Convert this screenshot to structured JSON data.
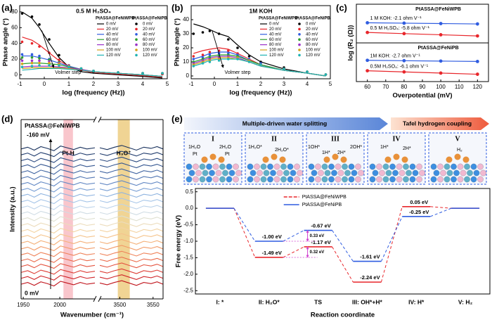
{
  "chart_data": [
    {
      "panel": "(a)",
      "type": "line",
      "title": "0.5 M H₂SO₄",
      "xlabel": "log (frequency (Hz))",
      "ylabel": "Phase angle (°)",
      "annotation": "Volmer step",
      "xlim": [
        -1,
        5
      ],
      "xticks": [
        -1,
        0,
        1,
        2,
        3,
        4,
        5
      ],
      "ylim": [
        -5,
        88
      ],
      "yticks": [
        0,
        20,
        40,
        60,
        80
      ],
      "legend_titles": [
        "PtASSA@FeNiWPB",
        "PtASSA@FeNiPB"
      ],
      "legend_title_colors": [
        "#e8262b",
        "#2f5ce0"
      ],
      "x": [
        -0.9,
        -0.5,
        -0.2,
        0.2,
        0.6,
        1,
        1.5,
        2,
        3,
        4,
        4.8
      ],
      "series": [
        {
          "name": "0 mV",
          "style": "line",
          "color": "#000000",
          "values": [
            80,
            72,
            60,
            40,
            22,
            10,
            4,
            2,
            0,
            -2,
            -4
          ]
        },
        {
          "name": "20 mV",
          "style": "line",
          "color": "#e8262b",
          "values": [
            48,
            44,
            38,
            28,
            18,
            11,
            6,
            3,
            1,
            -1,
            -3
          ]
        },
        {
          "name": "40 mV",
          "style": "line",
          "color": "#2f5ce0",
          "values": [
            24,
            24,
            22,
            19,
            15,
            11,
            7,
            4,
            2,
            0,
            -2
          ]
        },
        {
          "name": "60 mV",
          "style": "line",
          "color": "#2ca02c",
          "values": [
            14,
            15,
            15,
            14,
            13,
            10,
            7,
            4,
            2,
            0,
            -2
          ]
        },
        {
          "name": "80 mV",
          "style": "line",
          "color": "#9b30c8",
          "values": [
            10,
            11,
            11,
            11,
            10,
            9,
            7,
            4,
            2,
            0,
            -2
          ]
        },
        {
          "name": "100 mV",
          "style": "line",
          "color": "#d4a017",
          "values": [
            8,
            9,
            9,
            9,
            9,
            8,
            6,
            4,
            2,
            0,
            -2
          ]
        },
        {
          "name": "120 mV",
          "style": "line",
          "color": "#1fb3b3",
          "values": [
            6,
            7,
            8,
            8,
            8,
            7,
            6,
            4,
            2,
            0,
            -2
          ]
        },
        {
          "name": "0 mV",
          "style": "marker",
          "color": "#000000",
          "values": [
            78,
            74,
            64,
            45,
            25,
            12,
            6,
            4,
            3,
            2,
            1
          ]
        },
        {
          "name": "20 mV",
          "style": "marker",
          "color": "#e8262b",
          "values": [
            42,
            40,
            36,
            28,
            19,
            12,
            7,
            5,
            3,
            2,
            1
          ]
        },
        {
          "name": "40 mV",
          "style": "marker",
          "color": "#2f5ce0",
          "values": [
            26,
            26,
            24,
            20,
            16,
            12,
            8,
            5,
            3,
            2,
            2
          ]
        },
        {
          "name": "60 mV",
          "style": "marker",
          "color": "#2ca02c",
          "values": [
            22,
            22,
            21,
            19,
            16,
            12,
            8,
            5,
            3,
            2,
            2
          ]
        },
        {
          "name": "80 mV",
          "style": "marker",
          "color": "#9b30c8",
          "values": [
            18,
            18,
            18,
            17,
            15,
            12,
            8,
            5,
            3,
            2,
            2
          ]
        },
        {
          "name": "100 mV",
          "style": "marker",
          "color": "#d4a017",
          "values": [
            14,
            15,
            15,
            15,
            14,
            11,
            8,
            5,
            3,
            2,
            2
          ]
        },
        {
          "name": "120 mV",
          "style": "marker",
          "color": "#1fb3b3",
          "values": [
            10,
            11,
            12,
            12,
            12,
            10,
            8,
            5,
            3,
            2,
            2
          ]
        }
      ]
    },
    {
      "panel": "(b)",
      "type": "line",
      "title": "1M KOH",
      "xlabel": "log (frequency (Hz))",
      "ylabel": "Phase angle (°)",
      "annotation": "Volmer step",
      "xlim": [
        -1,
        5
      ],
      "xticks": [
        -1,
        0,
        1,
        2,
        3,
        4,
        5
      ],
      "ylim": [
        -2,
        50
      ],
      "yticks": [
        0,
        10,
        20,
        30,
        40
      ],
      "legend_titles": [
        "PtASSA@FeNiWPB",
        "PtASSA@FeNiPB"
      ],
      "legend_title_colors": [
        "#e8262b",
        "#2f5ce0"
      ],
      "x": [
        -0.9,
        -0.5,
        -0.2,
        0.2,
        0.6,
        1,
        1.5,
        2,
        3,
        4,
        4.8
      ],
      "series": [
        {
          "name": "0 mV",
          "style": "line",
          "color": "#000000",
          "values": [
            37,
            35,
            33,
            30,
            28,
            22,
            15,
            10,
            5,
            2,
            0
          ]
        },
        {
          "name": "20 mV",
          "style": "line",
          "color": "#e8262b",
          "values": [
            16,
            18,
            19,
            20,
            19,
            16,
            12,
            8,
            4,
            2,
            0
          ]
        },
        {
          "name": "40 mV",
          "style": "line",
          "color": "#2f5ce0",
          "values": [
            12,
            14,
            16,
            17,
            17,
            15,
            11,
            8,
            4,
            2,
            0
          ]
        },
        {
          "name": "60 mV",
          "style": "line",
          "color": "#2ca02c",
          "values": [
            10,
            12,
            14,
            15,
            15,
            14,
            11,
            8,
            4,
            2,
            0
          ]
        },
        {
          "name": "80 mV",
          "style": "line",
          "color": "#9b30c8",
          "values": [
            9,
            11,
            13,
            14,
            14,
            13,
            10,
            7,
            4,
            2,
            0
          ]
        },
        {
          "name": "100 mV",
          "style": "line",
          "color": "#d4a017",
          "values": [
            8,
            10,
            12,
            13,
            13,
            12,
            10,
            7,
            4,
            2,
            0
          ]
        },
        {
          "name": "120 mV",
          "style": "line",
          "color": "#1fb3b3",
          "values": [
            7,
            9,
            11,
            12,
            12,
            12,
            10,
            7,
            4,
            2,
            0
          ]
        },
        {
          "name": "0 mV",
          "style": "marker",
          "color": "#000000",
          "values": [
            30,
            31,
            32,
            30,
            26,
            20,
            14,
            10,
            6,
            3,
            1
          ]
        },
        {
          "name": "20 mV",
          "style": "marker",
          "color": "#e8262b",
          "values": [
            14,
            15,
            17,
            18,
            18,
            16,
            12,
            9,
            5,
            3,
            1
          ]
        },
        {
          "name": "40 mV",
          "style": "marker",
          "color": "#2f5ce0",
          "values": [
            12,
            13,
            15,
            16,
            16,
            15,
            12,
            9,
            5,
            3,
            1
          ]
        },
        {
          "name": "60 mV",
          "style": "marker",
          "color": "#2ca02c",
          "values": [
            10,
            12,
            13,
            14,
            15,
            14,
            11,
            8,
            5,
            3,
            1
          ]
        },
        {
          "name": "80 mV",
          "style": "marker",
          "color": "#9b30c8",
          "values": [
            9,
            11,
            12,
            13,
            14,
            13,
            11,
            8,
            5,
            3,
            1
          ]
        },
        {
          "name": "100 mV",
          "style": "marker",
          "color": "#d4a017",
          "values": [
            8,
            10,
            11,
            12,
            13,
            13,
            11,
            8,
            5,
            3,
            1
          ]
        },
        {
          "name": "120 mV",
          "style": "marker",
          "color": "#1fb3b3",
          "values": [
            7,
            9,
            10,
            11,
            12,
            12,
            10,
            8,
            5,
            3,
            1
          ]
        }
      ]
    },
    {
      "panel": "(c)",
      "type": "scatter",
      "xlabel": "Overpotential (mV)",
      "ylabel": "log (R₂ (Ω))",
      "xlim": [
        54,
        126
      ],
      "xticks": [
        60,
        70,
        80,
        90,
        100,
        110,
        120
      ],
      "x": [
        60,
        80,
        100,
        120
      ],
      "subplots": [
        {
          "title": "PtASSA@FeNiWPB",
          "ylim": [
            0,
            1
          ],
          "series": [
            {
              "name": "1 M KOH: -2.1 ohm V⁻¹",
              "color": "#2f5ce0",
              "values": [
                0.52,
                0.51,
                0.5,
                0.49
              ]
            },
            {
              "name": "0.5 M H₂SO₄: -5.8 ohm V⁻¹",
              "color": "#e8262b",
              "values": [
                0.27,
                0.24,
                0.21,
                0.18
              ]
            }
          ]
        },
        {
          "title": "PtASSA@FeNiPB",
          "ylim": [
            0,
            1
          ],
          "series": [
            {
              "name": "1M KOH: -2.7 ohm V⁻¹",
              "color": "#2f5ce0",
              "values": [
                0.55,
                0.54,
                0.53,
                0.52
              ]
            },
            {
              "name": "0.5M H₂SO₄: -6.1 ohm V⁻¹",
              "color": "#e8262b",
              "values": [
                0.28,
                0.25,
                0.22,
                0.19
              ]
            }
          ]
        }
      ]
    },
    {
      "panel": "(d)",
      "type": "waterfall",
      "title": "PtASSA@FeNiWPB",
      "top_label": "-160 mV",
      "bottom_label": "0 mV",
      "xlabel": "Wavenumber (cm⁻¹)",
      "ylabel": "Intensity (a.u.)",
      "ylim": [
        -2.5,
        28
      ],
      "segments": [
        {
          "xlim": [
            1947,
            2048
          ],
          "xticks": [
            1950,
            2000
          ],
          "x": [
            1947,
            1956,
            1965,
            1974,
            1983,
            1992,
            2001,
            2010,
            2019,
            2028,
            2037,
            2048
          ],
          "y": [
            0,
            0.3,
            -0.2,
            0.4,
            0.1,
            -0.3,
            0.5,
            0.2,
            -0.1,
            0.3,
            0,
            0.2
          ]
        },
        {
          "xlim": [
            3470,
            3565
          ],
          "xticks": [
            3500,
            3550
          ],
          "x": [
            3470,
            3481,
            3492,
            3503,
            3514,
            3525,
            3536,
            3547,
            3556,
            3565
          ],
          "y": [
            0.2,
            -0.1,
            0.3,
            0.6,
            0.2,
            -0.2,
            0.3,
            0.1,
            0.4,
            0
          ]
        }
      ],
      "bands": [
        {
          "label": "Pt-H",
          "range": [
            2005,
            2018
          ],
          "color": "#f6a8b0",
          "label_color": "#e8262b"
        },
        {
          "label": "H₃O⁺",
          "range": [
            3497,
            3515
          ],
          "color": "#e8bd5a",
          "label_color": "#000000"
        }
      ],
      "traces": [
        {
          "offset": 0,
          "color": "#c0141c"
        },
        {
          "offset": 1,
          "color": "#d0262a"
        },
        {
          "offset": 2,
          "color": "#dc3c34"
        },
        {
          "offset": 3,
          "color": "#e4533f"
        },
        {
          "offset": 4,
          "color": "#ea6a4a"
        },
        {
          "offset": 5,
          "color": "#ef8258"
        },
        {
          "offset": 6,
          "color": "#f29a66"
        },
        {
          "offset": 7,
          "color": "#f4b078"
        },
        {
          "offset": 8,
          "color": "#f5c48c"
        },
        {
          "offset": 9,
          "color": "#f3d4a4"
        },
        {
          "offset": 10,
          "color": "#ecdcbc"
        },
        {
          "offset": 11,
          "color": "#dfe0d0"
        },
        {
          "offset": 12,
          "color": "#cfdce4"
        },
        {
          "offset": 13,
          "color": "#bcd3ea"
        },
        {
          "offset": 14,
          "color": "#a6c5e8"
        },
        {
          "offset": 15,
          "color": "#8fb4e0"
        },
        {
          "offset": 16,
          "color": "#799fd4"
        },
        {
          "offset": 17,
          "color": "#658ac5"
        },
        {
          "offset": 18,
          "color": "#5277b4"
        },
        {
          "offset": 19,
          "color": "#4165a2"
        },
        {
          "offset": 20,
          "color": "#335590"
        },
        {
          "offset": 21,
          "color": "#27467e"
        },
        {
          "offset": 22,
          "color": "#1e3a6c"
        },
        {
          "offset": 23,
          "color": "#17305c"
        }
      ]
    },
    {
      "panel": "(e)",
      "type": "step",
      "banner": [
        "Multiple-driven water splitting",
        "Tafel  hydrogen coupling"
      ],
      "steps": [
        {
          "numeral": "I",
          "labels": [
            {
              "text": "1H₂O",
              "color": "#2f5ce0"
            },
            {
              "text": "2H₂O",
              "color": "#2f5ce0"
            },
            {
              "text": "Pt",
              "color": "#e08020"
            },
            {
              "text": "Pt",
              "color": "#e08020"
            }
          ]
        },
        {
          "numeral": "II",
          "labels": [
            {
              "text": "1H₂O*",
              "color": "#2f5ce0"
            },
            {
              "text": "2H₂O*",
              "color": "#2f5ce0"
            }
          ]
        },
        {
          "numeral": "III",
          "labels": [
            {
              "text": "1OH*",
              "color": "#2f5ce0"
            },
            {
              "text": "1H*",
              "color": "#2f5ce0"
            },
            {
              "text": "2H*",
              "color": "#2f5ce0"
            },
            {
              "text": "2OH*",
              "color": "#2f5ce0"
            }
          ]
        },
        {
          "numeral": "IV",
          "labels": [
            {
              "text": "1H*",
              "color": "#2f5ce0"
            },
            {
              "text": "2H*",
              "color": "#2f5ce0"
            }
          ]
        },
        {
          "numeral": "V",
          "labels": [
            {
              "text": "H₂",
              "color": "#2f5ce0"
            }
          ]
        }
      ],
      "ylabel": "Free energy (eV)",
      "xlabel": "Reaction coordinate",
      "categories": [
        "I: *",
        "II: H₂O*",
        "TS",
        "III: OH*+H*",
        "IV: H*",
        "V: H₂"
      ],
      "category_colors": [
        "#000000",
        "#000000",
        "#a020c0",
        "#000000",
        "#000000",
        "#000000"
      ],
      "ylim": [
        -2.6,
        0.6
      ],
      "yticks": [
        0.5,
        {
          "value": 0,
          "label": "0.0"
        },
        -0.5,
        {
          "value": -1,
          "label": "-1.0"
        },
        -1.5,
        {
          "value": -2,
          "label": "-2.0"
        },
        -2.5
      ],
      "series": [
        {
          "name": "PtASSA@FeNiWPB",
          "color": "#e8262b",
          "values": [
            0,
            -1.49,
            -1.17,
            -2.24,
            0.05,
            0
          ],
          "value_labels": [
            null,
            "-1.49 eV",
            "-1.17 eV",
            "-2.24 eV",
            "0.05 eV",
            null
          ]
        },
        {
          "name": "PtASSA@FeNiPB",
          "color": "#2f5ce0",
          "values": [
            0,
            -1.0,
            -0.67,
            -1.61,
            -0.25,
            0
          ],
          "value_labels": [
            null,
            "-1.00 eV",
            "-0.67 eV",
            "-1.61 eV",
            "-0.25 eV",
            null
          ]
        }
      ],
      "barriers": [
        {
          "value": 0.33,
          "label": "0.33 eV"
        },
        {
          "value": 0.32,
          "label": "0.32 eV"
        }
      ],
      "barrier_color": "#d040d0"
    }
  ]
}
